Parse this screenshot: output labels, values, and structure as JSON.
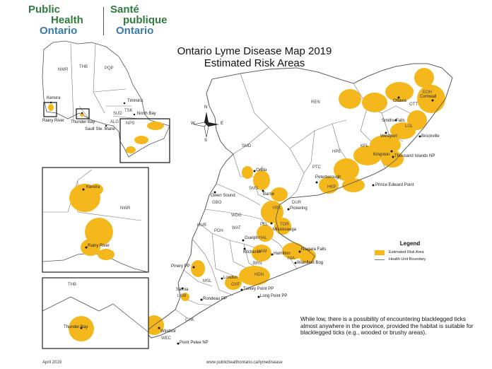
{
  "logo": {
    "en_line1": "Public",
    "en_line2": "Health",
    "en_line3": "Ontario",
    "fr_line1": "Santé",
    "fr_line2": "publique",
    "fr_line3": "Ontario"
  },
  "title": {
    "line1": "Ontario Lyme Disease Map 2019",
    "line2": "Estimated Risk Areas"
  },
  "health_units": [
    "NWR",
    "THB",
    "PQP",
    "TSK",
    "SUD",
    "ALG",
    "NPS",
    "REN",
    "EOH",
    "OTT",
    "LGL",
    "KFL",
    "HPE",
    "HKP",
    "PTC",
    "SMD",
    "GBO",
    "SMS",
    "YRK",
    "DUR",
    "TOR",
    "PEL",
    "HAL",
    "WAT",
    "WDG",
    "HUR",
    "PDH",
    "HAM",
    "BRN",
    "NIA",
    "HDN",
    "OXF",
    "MSL",
    "LAM",
    "CHK",
    "WEC"
  ],
  "cities": [
    "Kenora",
    "Rainy River",
    "Timmins",
    "Thunder Bay",
    "North Bay",
    "Sault Ste. Marie",
    "Ottawa",
    "Cornwall",
    "Smiths Falls",
    "Westport",
    "Brockville",
    "Kingston",
    "Thousand Islands NP",
    "Peterborough",
    "Prince Edward Point",
    "Orillia",
    "Barrie",
    "Owen Sound",
    "Pickering",
    "Mississauga",
    "Guelph",
    "Kitchener",
    "Hamilton",
    "Niagara Falls",
    "Wainfleet Bog",
    "Pinery PP",
    "London",
    "Sarnia",
    "Turkey Point PP",
    "Long Point PP",
    "Rondeau PP",
    "Windsor",
    "Point Pelee NP"
  ],
  "inset_nw": {
    "cities": [
      "Kenora",
      "Rainy River"
    ],
    "unit": "NWR"
  },
  "inset_tb": {
    "city": "Thunder Bay",
    "unit": "THB"
  },
  "legend": {
    "title": "Legend",
    "risk_label": "Estimated Risk Area",
    "boundary_label": "Health Unit Boundary"
  },
  "note": "While low, there is a possibility of encountering blacklegged ticks almost anywhere in the province, provided the habitat is suitable for blacklegged ticks (e.g., wooded or brushy areas).",
  "footer": {
    "date": "April 2019",
    "url": "www.publichealthontario.ca/lymedisease"
  },
  "compass": {
    "n": "N",
    "s": "S",
    "e": "E",
    "w": "W"
  },
  "colors": {
    "risk": "#f4b81c",
    "boundary": "#777777",
    "water": "#ffffff"
  }
}
